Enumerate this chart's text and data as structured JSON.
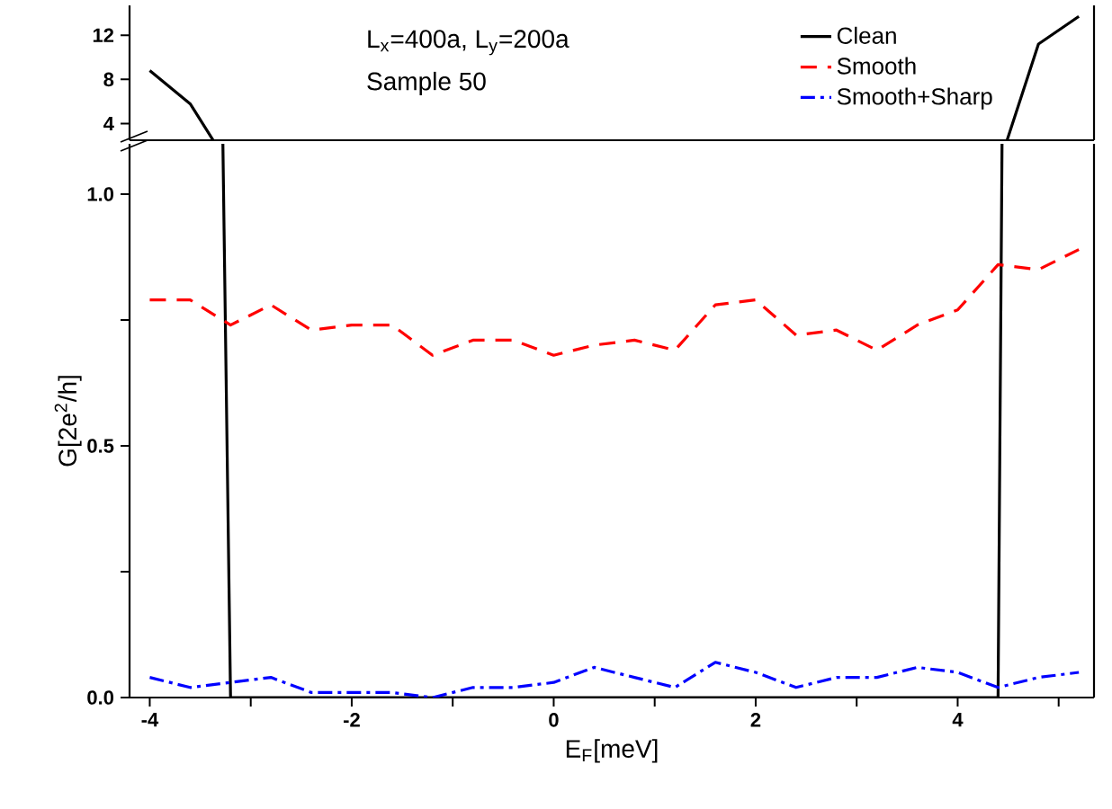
{
  "chart_data": [
    {
      "type": "line",
      "x": [
        -4,
        -3.6,
        -3.2,
        -2.8,
        -2.4,
        -2.0,
        -1.6,
        -1.2,
        -0.8,
        -0.4,
        0,
        0.4,
        0.8,
        1.2,
        1.6,
        2.0,
        2.4,
        2.8,
        3.2,
        3.6,
        4.0,
        4.4,
        4.8,
        5.2
      ],
      "xlim": [
        -4.2,
        5.35
      ],
      "ylim": [
        2.5,
        14.7
      ],
      "yticks": [
        4,
        8,
        12
      ],
      "tick_labels": "y",
      "grid": false,
      "marker": "none",
      "annotations": [
        "L$_{x}$=400a, L$_{y}$=200a",
        "Sample 50"
      ],
      "series": [
        {
          "color": "#000000",
          "line_style": "solid",
          "values": [
            8.8,
            5.8,
            null,
            null,
            null,
            null,
            null,
            null,
            null,
            null,
            null,
            null,
            null,
            null,
            null,
            null,
            null,
            null,
            null,
            null,
            null,
            null,
            11.2,
            13.7
          ]
        }
      ]
    },
    {
      "type": "line",
      "x": [
        -4,
        -3.6,
        -3.2,
        -2.8,
        -2.4,
        -2.0,
        -1.6,
        -1.2,
        -0.8,
        -0.4,
        0,
        0.4,
        0.8,
        1.2,
        1.6,
        2.0,
        2.4,
        2.8,
        3.2,
        3.6,
        4.0,
        4.4,
        4.8,
        5.2
      ],
      "xlim": [
        -4.2,
        5.35
      ],
      "ylim": [
        0,
        1.1
      ],
      "xlabel": "E$_{F}$[meV]",
      "ylabel": "G[2e$^{2}$/h]",
      "xticks": [
        -4,
        {
          "value": -3,
          "label": null
        },
        -2,
        {
          "value": -1,
          "label": null
        },
        0,
        {
          "value": 1,
          "label": null
        },
        2,
        {
          "value": 3,
          "label": null
        },
        4,
        {
          "value": 5,
          "label": null
        }
      ],
      "yticks": [
        {
          "value": 0,
          "label": "0.0"
        },
        {
          "value": 0.25,
          "label": null
        },
        0.5,
        {
          "value": 0.75,
          "label": null
        },
        {
          "value": 1,
          "label": "1.0"
        }
      ],
      "grid": false,
      "marker": "none",
      "legend": "top right",
      "series": [
        {
          "name": "Clean",
          "color": "#000000",
          "line_style": "solid",
          "values": [
            null,
            null,
            0,
            0,
            0,
            0,
            0,
            0,
            0,
            0,
            0,
            0,
            0,
            0,
            0,
            0,
            0,
            0,
            0,
            0,
            0,
            0,
            null,
            null
          ]
        },
        {
          "name": "Smooth",
          "color": "#ff0000",
          "line_style": "dashed",
          "values": [
            0.79,
            0.79,
            0.74,
            0.78,
            0.73,
            0.74,
            0.74,
            0.68,
            0.71,
            0.71,
            0.68,
            0.7,
            0.71,
            0.69,
            0.78,
            0.79,
            0.72,
            0.73,
            0.69,
            0.74,
            0.77,
            0.86,
            0.85,
            0.89
          ]
        },
        {
          "name": "Smooth+Sharp",
          "color": "#0000ff",
          "line_style": "dashdot",
          "values": [
            0.04,
            0.02,
            0.03,
            0.04,
            0.01,
            0.01,
            0.01,
            0.0,
            0.02,
            0.02,
            0.03,
            0.06,
            0.04,
            0.02,
            0.07,
            0.05,
            0.02,
            0.04,
            0.04,
            0.06,
            0.05,
            0.02,
            0.04,
            0.05
          ]
        }
      ]
    }
  ]
}
